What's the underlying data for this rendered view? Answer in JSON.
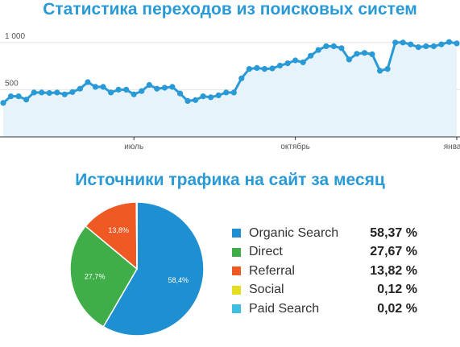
{
  "chart_data": [
    {
      "type": "area",
      "title": "Статистика переходов из поисковых систем",
      "xlabel": "",
      "ylabel": "",
      "ylim": [
        0,
        1160
      ],
      "yticks": [
        {
          "value": 500,
          "label": "500"
        },
        {
          "value": 1000,
          "label": "1 000"
        }
      ],
      "xticks": [
        {
          "index": 17,
          "label": "июль"
        },
        {
          "index": 38,
          "label": "октябрь"
        },
        {
          "index": 59,
          "label": "январь"
        }
      ],
      "grid": true,
      "color": "#2a9ad6",
      "fill": "#e6f3fb",
      "series": [
        {
          "values": [
            360,
            430,
            430,
            395,
            470,
            470,
            465,
            470,
            450,
            475,
            510,
            580,
            530,
            530,
            470,
            500,
            500,
            450,
            485,
            550,
            510,
            520,
            530,
            460,
            380,
            390,
            430,
            420,
            440,
            470,
            470,
            620,
            720,
            730,
            720,
            725,
            755,
            780,
            810,
            790,
            860,
            920,
            960,
            960,
            940,
            820,
            880,
            890,
            875,
            700,
            720,
            1000,
            1000,
            980,
            950,
            960,
            960,
            980,
            1005,
            990
          ]
        }
      ]
    },
    {
      "type": "pie",
      "title": "Источники трафика на сайт за месяц",
      "legend": "right",
      "slices": [
        {
          "label": "Organic Search",
          "value": 58.37,
          "value_label": "58,37 %",
          "pie_label": "58,4%",
          "color": "#1e8fd0"
        },
        {
          "label": "Direct",
          "value": 27.67,
          "value_label": "27,67 %",
          "pie_label": "27,7%",
          "color": "#3fae49"
        },
        {
          "label": "Referral",
          "value": 13.82,
          "value_label": "13,82 %",
          "pie_label": "13,8%",
          "color": "#ef5a24"
        },
        {
          "label": "Social",
          "value": 0.12,
          "value_label": "0,12 %",
          "pie_label": "",
          "color": "#e5dd1f"
        },
        {
          "label": "Paid Search",
          "value": 0.02,
          "value_label": "0,02 %",
          "pie_label": "",
          "color": "#3fbfe0"
        }
      ]
    }
  ]
}
